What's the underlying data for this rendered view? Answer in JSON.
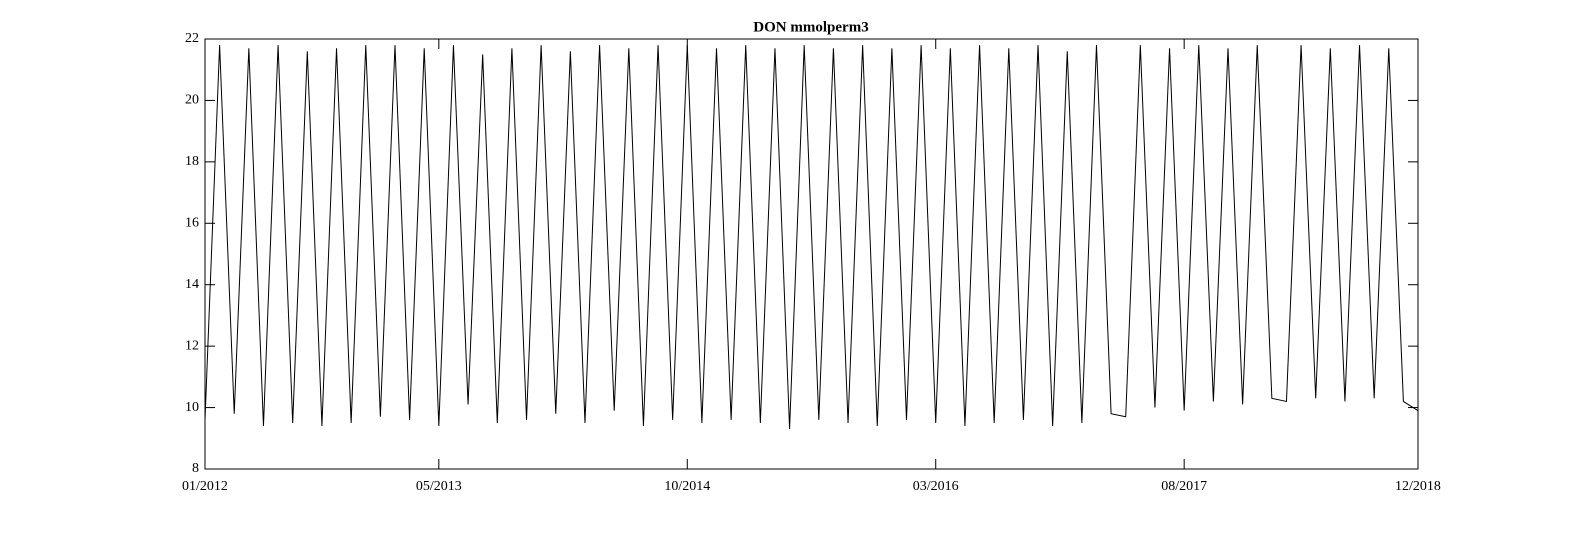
{
  "chart_data": {
    "type": "line",
    "title": "DON mmolperm3",
    "x": [
      "01/2012",
      "02/2012",
      "03/2012",
      "04/2012",
      "05/2012",
      "06/2012",
      "07/2012",
      "08/2012",
      "09/2012",
      "10/2012",
      "11/2012",
      "12/2012",
      "01/2013",
      "02/2013",
      "03/2013",
      "04/2013",
      "05/2013",
      "06/2013",
      "07/2013",
      "08/2013",
      "09/2013",
      "10/2013",
      "11/2013",
      "12/2013",
      "01/2014",
      "02/2014",
      "03/2014",
      "04/2014",
      "05/2014",
      "06/2014",
      "07/2014",
      "08/2014",
      "09/2014",
      "10/2014",
      "11/2014",
      "12/2014",
      "01/2015",
      "02/2015",
      "03/2015",
      "04/2015",
      "05/2015",
      "06/2015",
      "07/2015",
      "08/2015",
      "09/2015",
      "10/2015",
      "11/2015",
      "12/2015",
      "01/2016",
      "02/2016",
      "03/2016",
      "04/2016",
      "05/2016",
      "06/2016",
      "07/2016",
      "08/2016",
      "09/2016",
      "10/2016",
      "11/2016",
      "12/2016",
      "01/2017",
      "02/2017",
      "03/2017",
      "04/2017",
      "05/2017",
      "06/2017",
      "07/2017",
      "08/2017",
      "09/2017",
      "10/2017",
      "11/2017",
      "12/2017",
      "01/2018",
      "02/2018",
      "03/2018",
      "04/2018",
      "05/2018",
      "06/2018",
      "07/2018",
      "08/2018",
      "09/2018",
      "10/2018",
      "11/2018",
      "12/2018"
    ],
    "series": [
      {
        "color": "#000000",
        "values": [
          9.6,
          21.8,
          9.8,
          21.7,
          9.4,
          21.8,
          9.5,
          21.6,
          9.4,
          21.7,
          9.5,
          21.8,
          9.7,
          21.8,
          9.6,
          21.7,
          9.4,
          21.8,
          10.1,
          21.5,
          9.5,
          21.7,
          9.6,
          21.8,
          9.8,
          21.6,
          9.5,
          21.8,
          9.9,
          21.7,
          9.4,
          21.8,
          9.6,
          21.8,
          9.5,
          21.7,
          9.6,
          21.8,
          9.5,
          21.7,
          9.3,
          21.8,
          9.6,
          21.7,
          9.5,
          21.8,
          9.4,
          21.7,
          9.6,
          21.8,
          9.5,
          21.7,
          9.4,
          21.8,
          9.5,
          21.7,
          9.6,
          21.8,
          9.4,
          21.6,
          9.5,
          21.8,
          9.8,
          9.7,
          21.8,
          10.0,
          21.7,
          9.9,
          21.8,
          10.2,
          21.7,
          10.1,
          21.8,
          10.3,
          10.2,
          21.8,
          10.3,
          21.7,
          10.2,
          21.8,
          10.3,
          21.7,
          10.2,
          9.9
        ]
      }
    ],
    "xlim": [
      "01/2012",
      "12/2018"
    ],
    "xticks": [
      "01/2012",
      "05/2013",
      "10/2014",
      "03/2016",
      "08/2017",
      "12/2018"
    ],
    "ylim": [
      8,
      22
    ],
    "yticks": [
      8,
      10,
      12,
      14,
      16,
      18,
      20,
      22
    ]
  }
}
